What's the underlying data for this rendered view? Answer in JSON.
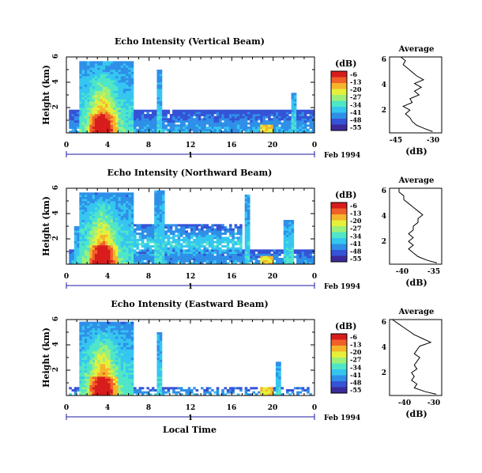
{
  "colors": {
    "scale": [
      "#3a2a9a",
      "#3553d6",
      "#2f8fe8",
      "#35c6f0",
      "#4fe6c8",
      "#9cf07a",
      "#e6f03a",
      "#f6b42a",
      "#f0602a",
      "#d81c1c"
    ],
    "axis": "#000000",
    "time_axis": "#1a1aa0"
  },
  "chart_data": [
    {
      "type": "heatmap",
      "title": "Echo Intensity (Vertical Beam)",
      "ylabel": "Height (km)",
      "xlabel": "",
      "xlim": [
        0,
        24
      ],
      "ylim": [
        0,
        6
      ],
      "x_ticks": [
        "0",
        "4",
        "8",
        "12",
        "16",
        "20",
        "0"
      ],
      "y_ticks": [
        "2",
        "4",
        "6"
      ],
      "colorbar_label": "(dB)",
      "colorbar_ticks": [
        "-6",
        "-13",
        "-20",
        "-27",
        "-34",
        "-41",
        "-48",
        "-55"
      ],
      "day_marker": "1",
      "date_label": "Feb 1994",
      "profile": {
        "title": "Average",
        "xlabel": "(dB)",
        "x_ticks": [
          "-45",
          "-30"
        ],
        "xlim": [
          -50,
          -27
        ],
        "y_ticks": [
          "2",
          "4",
          "6"
        ],
        "ylim": [
          0,
          6
        ],
        "points": [
          [
            -31,
            0.1
          ],
          [
            -34,
            0.3
          ],
          [
            -38,
            0.6
          ],
          [
            -40,
            0.9
          ],
          [
            -41,
            1.2
          ],
          [
            -43,
            1.5
          ],
          [
            -41,
            1.8
          ],
          [
            -44,
            2.1
          ],
          [
            -40,
            2.4
          ],
          [
            -41,
            2.7
          ],
          [
            -37,
            3.0
          ],
          [
            -39,
            3.3
          ],
          [
            -36,
            3.6
          ],
          [
            -39,
            3.9
          ],
          [
            -35,
            4.2
          ],
          [
            -38,
            4.5
          ],
          [
            -40,
            4.8
          ],
          [
            -42,
            5.1
          ],
          [
            -44,
            5.4
          ],
          [
            -43,
            5.7
          ],
          [
            -45,
            6.0
          ]
        ]
      }
    },
    {
      "type": "heatmap",
      "title": "Echo Intensity (Northward Beam)",
      "ylabel": "Height (km)",
      "xlabel": "",
      "xlim": [
        0,
        24
      ],
      "ylim": [
        0,
        6
      ],
      "x_ticks": [
        "0",
        "4",
        "8",
        "12",
        "16",
        "20",
        "0"
      ],
      "y_ticks": [
        "2",
        "4",
        "6"
      ],
      "colorbar_label": "(dB)",
      "colorbar_ticks": [
        "-6",
        "-13",
        "-20",
        "-27",
        "-34",
        "-41",
        "-48",
        "-55"
      ],
      "day_marker": "1",
      "date_label": "Feb 1994",
      "profile": {
        "title": "Average",
        "xlabel": "(dB)",
        "x_ticks": [
          "-40",
          "-35"
        ],
        "xlim": [
          -44,
          -33
        ],
        "y_ticks": [
          "2",
          "4",
          "6"
        ],
        "ylim": [
          0,
          6
        ],
        "points": [
          [
            -34,
            0.1
          ],
          [
            -36,
            0.3
          ],
          [
            -38,
            0.6
          ],
          [
            -39,
            0.9
          ],
          [
            -40,
            1.2
          ],
          [
            -39,
            1.5
          ],
          [
            -40,
            1.8
          ],
          [
            -39,
            2.1
          ],
          [
            -40,
            2.4
          ],
          [
            -39,
            2.7
          ],
          [
            -39,
            3.0
          ],
          [
            -38,
            3.3
          ],
          [
            -38,
            3.6
          ],
          [
            -37,
            3.9
          ],
          [
            -38,
            4.2
          ],
          [
            -39,
            4.5
          ],
          [
            -40,
            4.8
          ],
          [
            -41,
            5.1
          ],
          [
            -41,
            5.4
          ],
          [
            -42,
            5.7
          ],
          [
            -42,
            6.0
          ]
        ]
      }
    },
    {
      "type": "heatmap",
      "title": "Echo Intensity (Eastward Beam)",
      "ylabel": "Height (km)",
      "xlabel": "Local Time",
      "xlim": [
        0,
        24
      ],
      "ylim": [
        0,
        6
      ],
      "x_ticks": [
        "0",
        "4",
        "8",
        "12",
        "16",
        "20",
        "0"
      ],
      "y_ticks": [
        "2",
        "4",
        "6"
      ],
      "colorbar_label": "(dB)",
      "colorbar_ticks": [
        "-6",
        "-13",
        "-20",
        "-27",
        "-34",
        "-41",
        "-48",
        "-55"
      ],
      "day_marker": "1",
      "date_label": "Feb 1994",
      "profile": {
        "title": "Average",
        "xlabel": "(dB)",
        "x_ticks": [
          "-40",
          "-30"
        ],
        "xlim": [
          -46,
          -27
        ],
        "y_ticks": [
          "2",
          "4",
          "6"
        ],
        "ylim": [
          0,
          6
        ],
        "points": [
          [
            -29,
            0.1
          ],
          [
            -33,
            0.3
          ],
          [
            -37,
            0.6
          ],
          [
            -36,
            0.9
          ],
          [
            -38,
            1.2
          ],
          [
            -37,
            1.5
          ],
          [
            -38,
            1.8
          ],
          [
            -36,
            2.1
          ],
          [
            -37,
            2.4
          ],
          [
            -36,
            2.7
          ],
          [
            -35,
            3.0
          ],
          [
            -37,
            3.3
          ],
          [
            -36,
            3.6
          ],
          [
            -35,
            3.9
          ],
          [
            -31,
            4.2
          ],
          [
            -34,
            4.5
          ],
          [
            -37,
            4.8
          ],
          [
            -39,
            5.1
          ],
          [
            -41,
            5.4
          ],
          [
            -43,
            5.7
          ],
          [
            -45,
            6.0
          ]
        ]
      }
    }
  ]
}
